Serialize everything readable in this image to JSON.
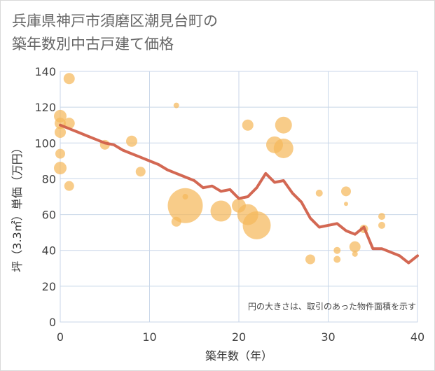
{
  "title_lines": [
    "兵庫県神戸市須磨区潮見台町の",
    "築年数別中古戸建て価格"
  ],
  "chart_data": {
    "type": "scatter",
    "xlabel": "築年数（年）",
    "ylabel": "坪（3.3㎡）単価（万円）",
    "xlim": [
      0,
      40
    ],
    "ylim": [
      0,
      140
    ],
    "x_ticks": [
      0,
      10,
      20,
      30,
      40
    ],
    "y_ticks": [
      0,
      20,
      40,
      60,
      80,
      100,
      120,
      140
    ],
    "grid": true,
    "note": "円の大きさは、取引のあった物件面積を示す",
    "bubble_color": "#f5b95c",
    "line_color": "#d1604a",
    "bubbles": [
      {
        "x": 0,
        "y": 115,
        "r": 9
      },
      {
        "x": 0,
        "y": 111,
        "r": 8
      },
      {
        "x": 0,
        "y": 106,
        "r": 8
      },
      {
        "x": 0,
        "y": 94,
        "r": 7
      },
      {
        "x": 0,
        "y": 86,
        "r": 9
      },
      {
        "x": 1,
        "y": 136,
        "r": 8
      },
      {
        "x": 1,
        "y": 111,
        "r": 8
      },
      {
        "x": 1,
        "y": 76,
        "r": 7
      },
      {
        "x": 5,
        "y": 99,
        "r": 7
      },
      {
        "x": 8,
        "y": 101,
        "r": 8
      },
      {
        "x": 9,
        "y": 84,
        "r": 7
      },
      {
        "x": 13,
        "y": 121,
        "r": 4
      },
      {
        "x": 13,
        "y": 56,
        "r": 7
      },
      {
        "x": 14,
        "y": 65,
        "r": 25
      },
      {
        "x": 14,
        "y": 70,
        "r": 4
      },
      {
        "x": 18,
        "y": 62,
        "r": 15
      },
      {
        "x": 20,
        "y": 65,
        "r": 10
      },
      {
        "x": 21,
        "y": 110,
        "r": 8
      },
      {
        "x": 21,
        "y": 60,
        "r": 15
      },
      {
        "x": 22,
        "y": 54,
        "r": 20
      },
      {
        "x": 24,
        "y": 99,
        "r": 12
      },
      {
        "x": 25,
        "y": 110,
        "r": 12
      },
      {
        "x": 25,
        "y": 97,
        "r": 14
      },
      {
        "x": 28,
        "y": 35,
        "r": 7
      },
      {
        "x": 29,
        "y": 72,
        "r": 5
      },
      {
        "x": 31,
        "y": 40,
        "r": 5
      },
      {
        "x": 31,
        "y": 35,
        "r": 5
      },
      {
        "x": 32,
        "y": 73,
        "r": 7
      },
      {
        "x": 32,
        "y": 66,
        "r": 3
      },
      {
        "x": 33,
        "y": 42,
        "r": 8
      },
      {
        "x": 33,
        "y": 38,
        "r": 4
      },
      {
        "x": 34,
        "y": 52,
        "r": 6
      },
      {
        "x": 36,
        "y": 59,
        "r": 5
      },
      {
        "x": 36,
        "y": 54,
        "r": 5
      }
    ],
    "average_line": {
      "x": [
        0,
        1,
        2,
        3,
        4,
        5,
        6,
        7,
        8,
        9,
        10,
        11,
        12,
        13,
        14,
        15,
        16,
        17,
        18,
        19,
        20,
        21,
        22,
        23,
        24,
        25,
        26,
        27,
        28,
        29,
        30,
        31,
        32,
        33,
        34,
        35,
        36,
        37,
        38,
        39,
        40
      ],
      "y": [
        110,
        108,
        106,
        104,
        102,
        100,
        99,
        96,
        94,
        92,
        90,
        88,
        85,
        83,
        81,
        79,
        75,
        76,
        73,
        74,
        69,
        70,
        75,
        83,
        78,
        79,
        72,
        67,
        58,
        53,
        54,
        55,
        51,
        49,
        53,
        41,
        41,
        39,
        37,
        33,
        37
      ]
    }
  }
}
